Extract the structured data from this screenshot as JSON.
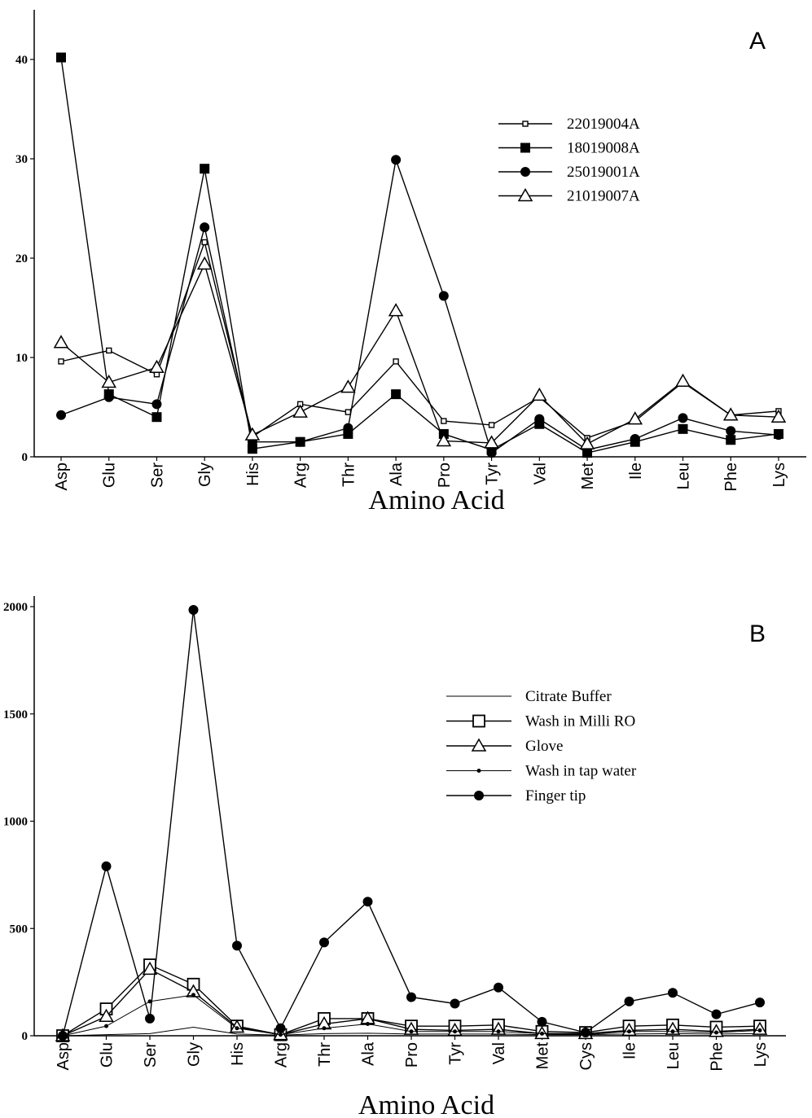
{
  "chart_data": [
    {
      "type": "line",
      "panel_label": "A",
      "xlabel": "Amino Acid",
      "ylabel": "",
      "ylim": [
        0,
        40
      ],
      "yticks": [
        0,
        10,
        20,
        30,
        40
      ],
      "categories": [
        "Asp",
        "Glu",
        "Ser",
        "Gly",
        "His",
        "Arg",
        "Thr",
        "Ala",
        "Pro",
        "Tyr",
        "Val",
        "Met",
        "Ile",
        "Leu",
        "Phe",
        "Lys"
      ],
      "legend_position": "top-right",
      "series": [
        {
          "name": "22019004A",
          "marker": "small-square",
          "values": [
            9.6,
            10.7,
            8.3,
            21.6,
            2.0,
            5.3,
            4.5,
            9.6,
            3.6,
            3.2,
            6.0,
            1.9,
            3.6,
            7.5,
            4.2,
            4.6
          ]
        },
        {
          "name": "18019008A",
          "marker": "filled-square",
          "values": [
            40.2,
            6.3,
            4.0,
            29.0,
            0.8,
            1.5,
            2.3,
            6.3,
            2.3,
            0.7,
            3.3,
            0.4,
            1.5,
            2.8,
            1.7,
            2.3
          ]
        },
        {
          "name": "25019001A",
          "marker": "filled-circle",
          "values": [
            4.2,
            6.0,
            5.3,
            23.1,
            1.5,
            1.5,
            2.9,
            29.9,
            16.2,
            0.4,
            3.8,
            0.7,
            1.8,
            3.9,
            2.6,
            2.2
          ]
        },
        {
          "name": "21019007A",
          "marker": "open-triangle",
          "values": [
            11.5,
            7.5,
            9.0,
            19.4,
            2.2,
            4.5,
            7.0,
            14.7,
            1.6,
            1.4,
            6.2,
            1.3,
            3.8,
            7.6,
            4.2,
            4.0
          ]
        }
      ]
    },
    {
      "type": "line",
      "panel_label": "B",
      "xlabel": "Amino Acid",
      "ylabel": "",
      "ylim": [
        0,
        2000
      ],
      "yticks": [
        0,
        500,
        1000,
        1500,
        2000
      ],
      "categories": [
        "Asp",
        "Glu",
        "Ser",
        "Gly",
        "His",
        "Arg",
        "Thr",
        "Ala",
        "Pro",
        "Tyr",
        "Val",
        "Met",
        "Cys",
        "Ile",
        "Leu",
        "Phe",
        "Lys"
      ],
      "legend_position": "top-right",
      "series": [
        {
          "name": "Citrate Buffer",
          "marker": "none",
          "values": [
            0,
            5,
            10,
            40,
            8,
            3,
            10,
            12,
            8,
            8,
            8,
            5,
            5,
            8,
            10,
            8,
            10
          ]
        },
        {
          "name": "Wash in Milli RO",
          "marker": "open-square",
          "values": [
            0,
            125,
            330,
            240,
            45,
            5,
            80,
            80,
            45,
            45,
            50,
            20,
            15,
            45,
            50,
            40,
            45
          ]
        },
        {
          "name": "Glove",
          "marker": "open-triangle",
          "values": [
            0,
            90,
            310,
            205,
            40,
            5,
            55,
            80,
            30,
            25,
            30,
            10,
            10,
            25,
            30,
            20,
            30
          ]
        },
        {
          "name": "Wash in tap water",
          "marker": "small-dot",
          "values": [
            0,
            45,
            160,
            190,
            35,
            5,
            35,
            55,
            20,
            20,
            20,
            10,
            5,
            20,
            20,
            15,
            25
          ]
        },
        {
          "name": "Finger tip",
          "marker": "filled-circle",
          "values": [
            0,
            790,
            80,
            1985,
            420,
            35,
            435,
            625,
            180,
            150,
            225,
            65,
            15,
            160,
            200,
            100,
            155
          ]
        }
      ]
    }
  ]
}
